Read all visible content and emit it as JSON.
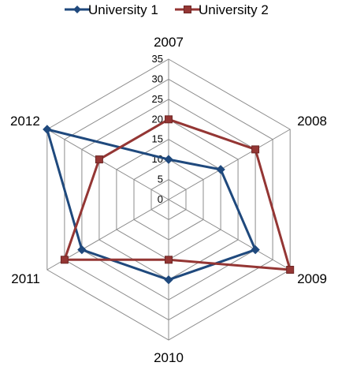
{
  "chart_data": {
    "type": "radar",
    "categories": [
      "2007",
      "2008",
      "2009",
      "2010",
      "2011",
      "2012"
    ],
    "series": [
      {
        "name": "University 1",
        "color": "#1F497D",
        "marker": "diamond",
        "values": [
          10,
          15,
          25,
          20,
          25,
          35
        ]
      },
      {
        "name": "University 2",
        "color": "#943634",
        "marker": "square",
        "values": [
          20,
          25,
          35,
          15,
          30,
          20
        ]
      }
    ],
    "r_ticks": [
      "0",
      "5",
      "10",
      "15",
      "20",
      "25",
      "30",
      "35"
    ],
    "r_range": [
      0,
      35
    ],
    "grid": true,
    "legend": "top"
  }
}
